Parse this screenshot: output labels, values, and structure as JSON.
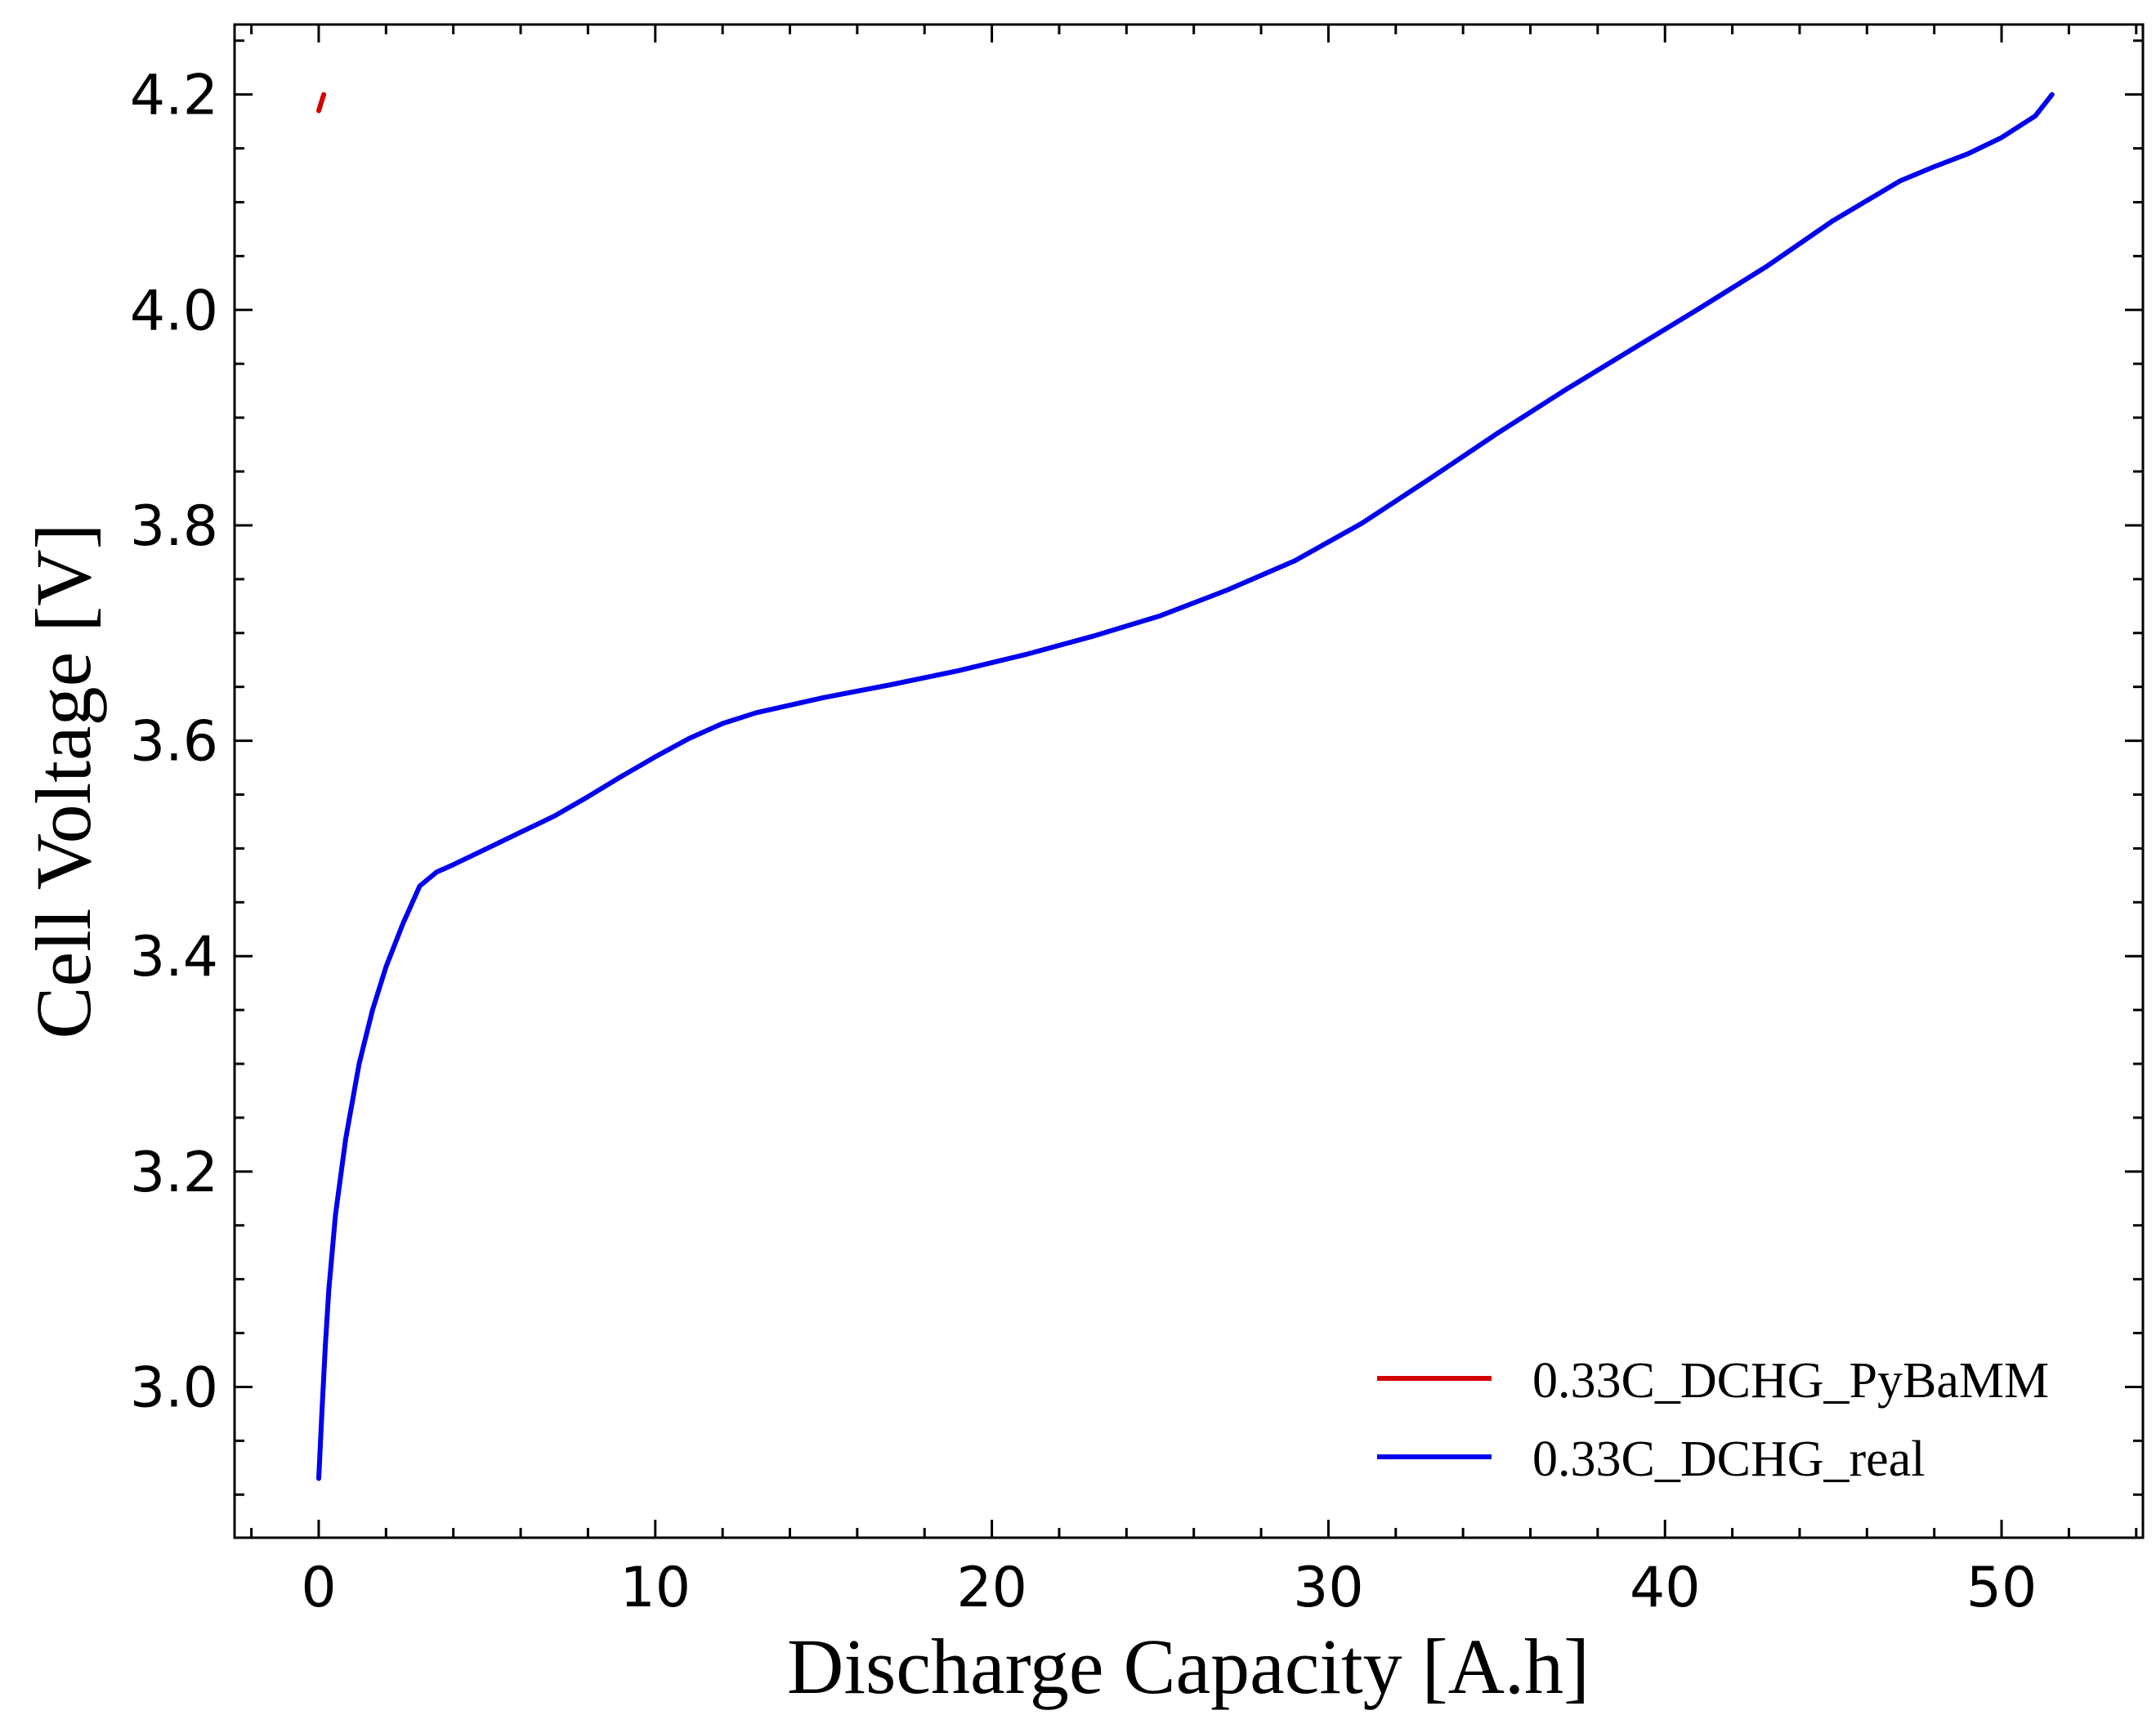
{
  "chart_data": {
    "type": "line",
    "xlabel": "Discharge Capacity [A.h]",
    "ylabel": "Cell Voltage [V]",
    "xlim": [
      -2.5,
      54.2
    ],
    "ylim": [
      2.86,
      4.265
    ],
    "x_ticks": [
      0,
      10,
      20,
      30,
      40,
      50
    ],
    "x_tick_labels": [
      "0",
      "10",
      "20",
      "30",
      "40",
      "50"
    ],
    "x_minor_step": 2,
    "y_ticks": [
      3.0,
      3.2,
      3.4,
      3.6,
      3.8,
      4.0,
      4.2
    ],
    "y_tick_labels": [
      "3.0",
      "3.2",
      "3.4",
      "3.6",
      "3.8",
      "4.0",
      "4.2"
    ],
    "y_minor_step": 0.05,
    "tick_direction": "in",
    "grid": false,
    "legend_position": "lower-right",
    "series": [
      {
        "name": "0.33C_DCHG_PyBaMM",
        "color": "#d40000",
        "x": [
          0.0,
          0.15
        ],
        "y": [
          4.185,
          4.2
        ]
      },
      {
        "name": "0.33C_DCHG_real",
        "color": "#0000ee",
        "x": [
          0.0,
          0.1,
          0.2,
          0.3,
          0.5,
          0.8,
          1.2,
          1.6,
          2.0,
          2.5,
          3.0,
          3.5,
          4.0,
          5.0,
          6.0,
          7.0,
          8.0,
          9.0,
          10.0,
          11.0,
          12.0,
          13.0,
          15.0,
          17.0,
          19.0,
          21.0,
          23.0,
          25.0,
          27.0,
          29.0,
          31.0,
          33.0,
          35.0,
          37.0,
          39.0,
          41.0,
          43.0,
          45.0,
          47.0,
          48.0,
          49.0,
          50.0,
          51.0,
          51.5
        ],
        "y": [
          2.915,
          2.98,
          3.04,
          3.09,
          3.16,
          3.23,
          3.3,
          3.35,
          3.39,
          3.43,
          3.465,
          3.478,
          3.485,
          3.5,
          3.515,
          3.53,
          3.548,
          3.567,
          3.585,
          3.602,
          3.616,
          3.626,
          3.64,
          3.652,
          3.665,
          3.68,
          3.697,
          3.716,
          3.74,
          3.767,
          3.802,
          3.843,
          3.885,
          3.925,
          3.963,
          4.001,
          4.04,
          4.083,
          4.12,
          4.133,
          4.145,
          4.16,
          4.18,
          4.2
        ]
      }
    ]
  }
}
